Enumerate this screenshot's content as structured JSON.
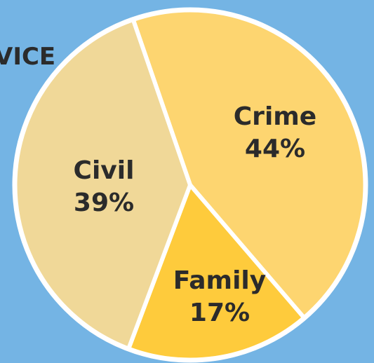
{
  "chart_data": {
    "type": "pie",
    "title": "VICE",
    "categories": [
      "Crime",
      "Family",
      "Civil"
    ],
    "values": [
      44,
      17,
      39
    ],
    "value_labels": [
      "44%",
      "17%",
      "39%"
    ],
    "colors": [
      "#fdd570",
      "#fecb3c",
      "#f0d898"
    ]
  }
}
